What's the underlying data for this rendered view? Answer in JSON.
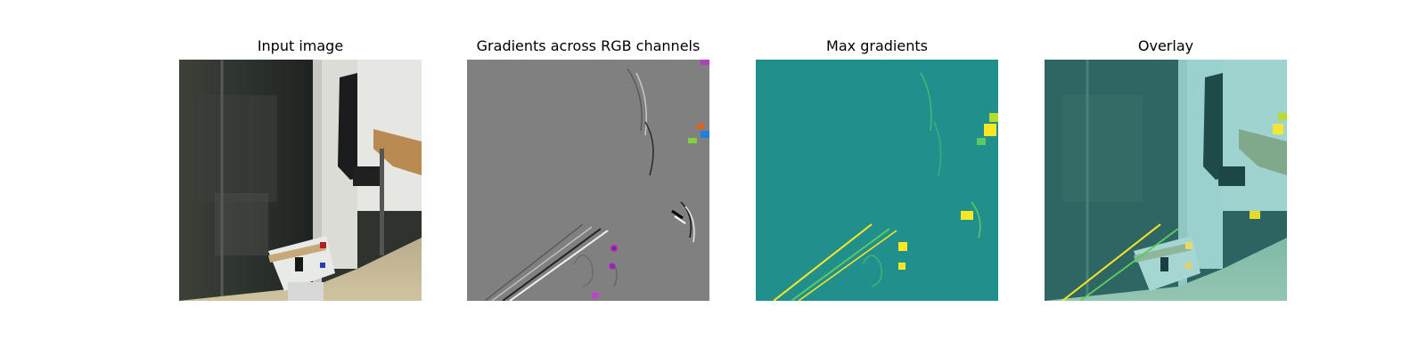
{
  "figure": {
    "panels": [
      {
        "title": "Input image",
        "content": "photo of an office room with a glass wall, a door with a hanging coat, a desk and a small white table with blocks"
      },
      {
        "title": "Gradients across RGB channels",
        "content": "gray gradient map with sparse colored edge highlights"
      },
      {
        "title": "Max gradients",
        "content": "teal gradient magnitude map with yellow highlights"
      },
      {
        "title": "Overlay",
        "content": "input photo tinted teal with gradient highlights overlaid"
      }
    ]
  },
  "colors": {
    "gray_bg": "#808080",
    "teal_bg": "#21908c",
    "highlight_yellow": "#fde725",
    "highlight_green": "#5ec962"
  }
}
